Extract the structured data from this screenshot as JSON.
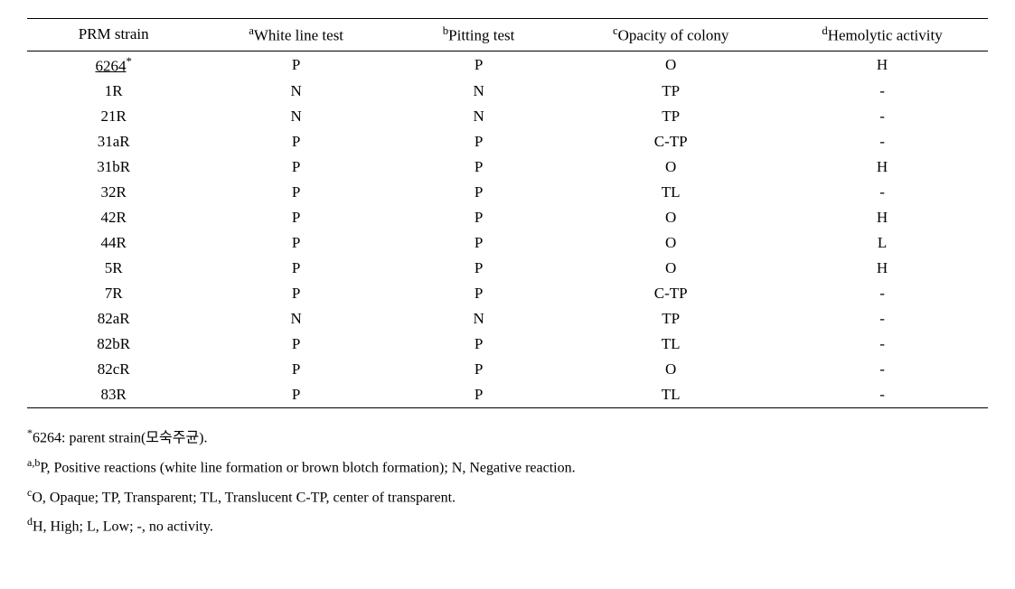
{
  "table": {
    "columns": [
      {
        "sup": "",
        "label": "PRM strain"
      },
      {
        "sup": "a",
        "label": "White line test"
      },
      {
        "sup": "b",
        "label": "Pitting test"
      },
      {
        "sup": "c",
        "label": "Opacity of colony"
      },
      {
        "sup": "d",
        "label": "Hemolytic activity"
      }
    ],
    "rows": [
      {
        "strain": "6264",
        "strain_sup": "*",
        "underline": true,
        "white": "P",
        "pitting": "P",
        "opacity": "O",
        "hemolytic": "H"
      },
      {
        "strain": "1R",
        "strain_sup": "",
        "underline": false,
        "white": "N",
        "pitting": "N",
        "opacity": "TP",
        "hemolytic": "-"
      },
      {
        "strain": "21R",
        "strain_sup": "",
        "underline": false,
        "white": "N",
        "pitting": "N",
        "opacity": "TP",
        "hemolytic": "-"
      },
      {
        "strain": "31aR",
        "strain_sup": "",
        "underline": false,
        "white": "P",
        "pitting": "P",
        "opacity": "C-TP",
        "hemolytic": "-"
      },
      {
        "strain": "31bR",
        "strain_sup": "",
        "underline": false,
        "white": "P",
        "pitting": "P",
        "opacity": "O",
        "hemolytic": "H"
      },
      {
        "strain": "32R",
        "strain_sup": "",
        "underline": false,
        "white": "P",
        "pitting": "P",
        "opacity": "TL",
        "hemolytic": "-"
      },
      {
        "strain": "42R",
        "strain_sup": "",
        "underline": false,
        "white": "P",
        "pitting": "P",
        "opacity": "O",
        "hemolytic": "H"
      },
      {
        "strain": "44R",
        "strain_sup": "",
        "underline": false,
        "white": "P",
        "pitting": "P",
        "opacity": "O",
        "hemolytic": "L"
      },
      {
        "strain": "5R",
        "strain_sup": "",
        "underline": false,
        "white": "P",
        "pitting": "P",
        "opacity": "O",
        "hemolytic": "H"
      },
      {
        "strain": "7R",
        "strain_sup": "",
        "underline": false,
        "white": "P",
        "pitting": "P",
        "opacity": "C-TP",
        "hemolytic": "-"
      },
      {
        "strain": "82aR",
        "strain_sup": "",
        "underline": false,
        "white": "N",
        "pitting": "N",
        "opacity": "TP",
        "hemolytic": "-"
      },
      {
        "strain": "82bR",
        "strain_sup": "",
        "underline": false,
        "white": "P",
        "pitting": "P",
        "opacity": "TL",
        "hemolytic": "-"
      },
      {
        "strain": "82cR",
        "strain_sup": "",
        "underline": false,
        "white": "P",
        "pitting": "P",
        "opacity": "O",
        "hemolytic": "-"
      },
      {
        "strain": "83R",
        "strain_sup": "",
        "underline": false,
        "white": "P",
        "pitting": "P",
        "opacity": "TL",
        "hemolytic": "-"
      }
    ],
    "column_widths": [
      "18%",
      "20%",
      "18%",
      "22%",
      "22%"
    ],
    "border_color": "#000000",
    "text_color": "#000000",
    "background": "#ffffff"
  },
  "footnotes": [
    {
      "sup": "*",
      "text": "6264: parent strain(모숙주균)."
    },
    {
      "sup": "a,b",
      "text": "P, Positive reactions (white line formation or brown blotch formation); N, Negative reaction."
    },
    {
      "sup": "c",
      "text": "O, Opaque; TP, Transparent; TL, Translucent C-TP, center of transparent."
    },
    {
      "sup": "d",
      "text": "H, High; L, Low; -, no activity."
    }
  ]
}
